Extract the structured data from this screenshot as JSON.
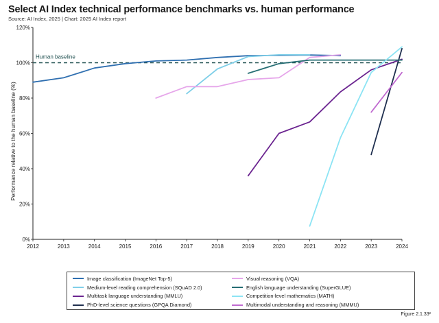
{
  "header": {
    "title": "Select AI Index technical performance benchmarks vs. human performance",
    "subtitle": "Source: AI Index, 2025 | Chart: 2025 AI Index report"
  },
  "figure_label": "Figure 2.1.33²",
  "colors": {
    "imagenet": "#2f6fb0",
    "squad": "#7fcfe8",
    "mmlu": "#6b2490",
    "gpqa": "#1f2f4f",
    "vqa": "#e6a6ea",
    "superglue": "#256d73",
    "math": "#8ce4f4",
    "mmmu": "#c06ad0",
    "baseline": "#1f4f4f",
    "axis": "#222222"
  },
  "chart_data": {
    "type": "line",
    "title": "Select AI Index technical performance benchmarks vs. human performance",
    "xlabel": "",
    "ylabel": "Performance relative to the human baseline (%)",
    "xlim": [
      2012,
      2024
    ],
    "ylim": [
      0,
      120
    ],
    "x_ticks": [
      "2012",
      "2013",
      "2014",
      "2015",
      "2016",
      "2017",
      "2018",
      "2019",
      "2020",
      "2021",
      "2022",
      "2023",
      "2024"
    ],
    "y_ticks": [
      "0%",
      "20%",
      "40%",
      "60%",
      "80%",
      "100%",
      "120%"
    ],
    "grid": false,
    "baseline": {
      "label": "Human baseline",
      "value": 100
    },
    "legend_position": "bottom",
    "series": [
      {
        "key": "imagenet",
        "name": "Image classification (ImageNet Top-5)",
        "x": [
          2012,
          2013,
          2014,
          2015,
          2016,
          2017,
          2018,
          2019,
          2020,
          2021,
          2022
        ],
        "y": [
          89,
          91.5,
          97,
          99.5,
          101,
          101.5,
          103,
          104,
          104.2,
          104.4,
          104
        ]
      },
      {
        "key": "squad",
        "name": "Medium-level reading comprehension (SQuAD 2.0)",
        "x": [
          2017,
          2018,
          2019,
          2020,
          2021
        ],
        "y": [
          82.5,
          96.5,
          103.5,
          104.5,
          104.5
        ]
      },
      {
        "key": "mmlu",
        "name": "Multitask language understanding (MMLU)",
        "x": [
          2019,
          2020,
          2021,
          2022,
          2023,
          2024
        ],
        "y": [
          36,
          60,
          66.5,
          83.5,
          96,
          102
        ]
      },
      {
        "key": "gpqa",
        "name": "PhD-level science questions (GPQA Diamond)",
        "x": [
          2023,
          2024
        ],
        "y": [
          48,
          108
        ]
      },
      {
        "key": "vqa",
        "name": "Visual reasoning (VQA)",
        "x": [
          2016,
          2017,
          2018,
          2019,
          2020,
          2021,
          2022
        ],
        "y": [
          80,
          86.5,
          86.5,
          90.5,
          91.5,
          103,
          104.5
        ]
      },
      {
        "key": "superglue",
        "name": "English language understanding (SuperGLUE)",
        "x": [
          2019,
          2020,
          2021,
          2022,
          2023,
          2024
        ],
        "y": [
          94,
          99.5,
          101.5,
          101.5,
          101.5,
          101.5
        ]
      },
      {
        "key": "math",
        "name": "Competition-level mathematics (MATH)",
        "x": [
          2021,
          2022,
          2023,
          2024
        ],
        "y": [
          7.5,
          57.5,
          94.5,
          109
        ]
      },
      {
        "key": "mmmu",
        "name": "Multimodal understanding and reasoning (MMMU)",
        "x": [
          2023,
          2024
        ],
        "y": [
          72,
          94.5
        ]
      }
    ]
  }
}
